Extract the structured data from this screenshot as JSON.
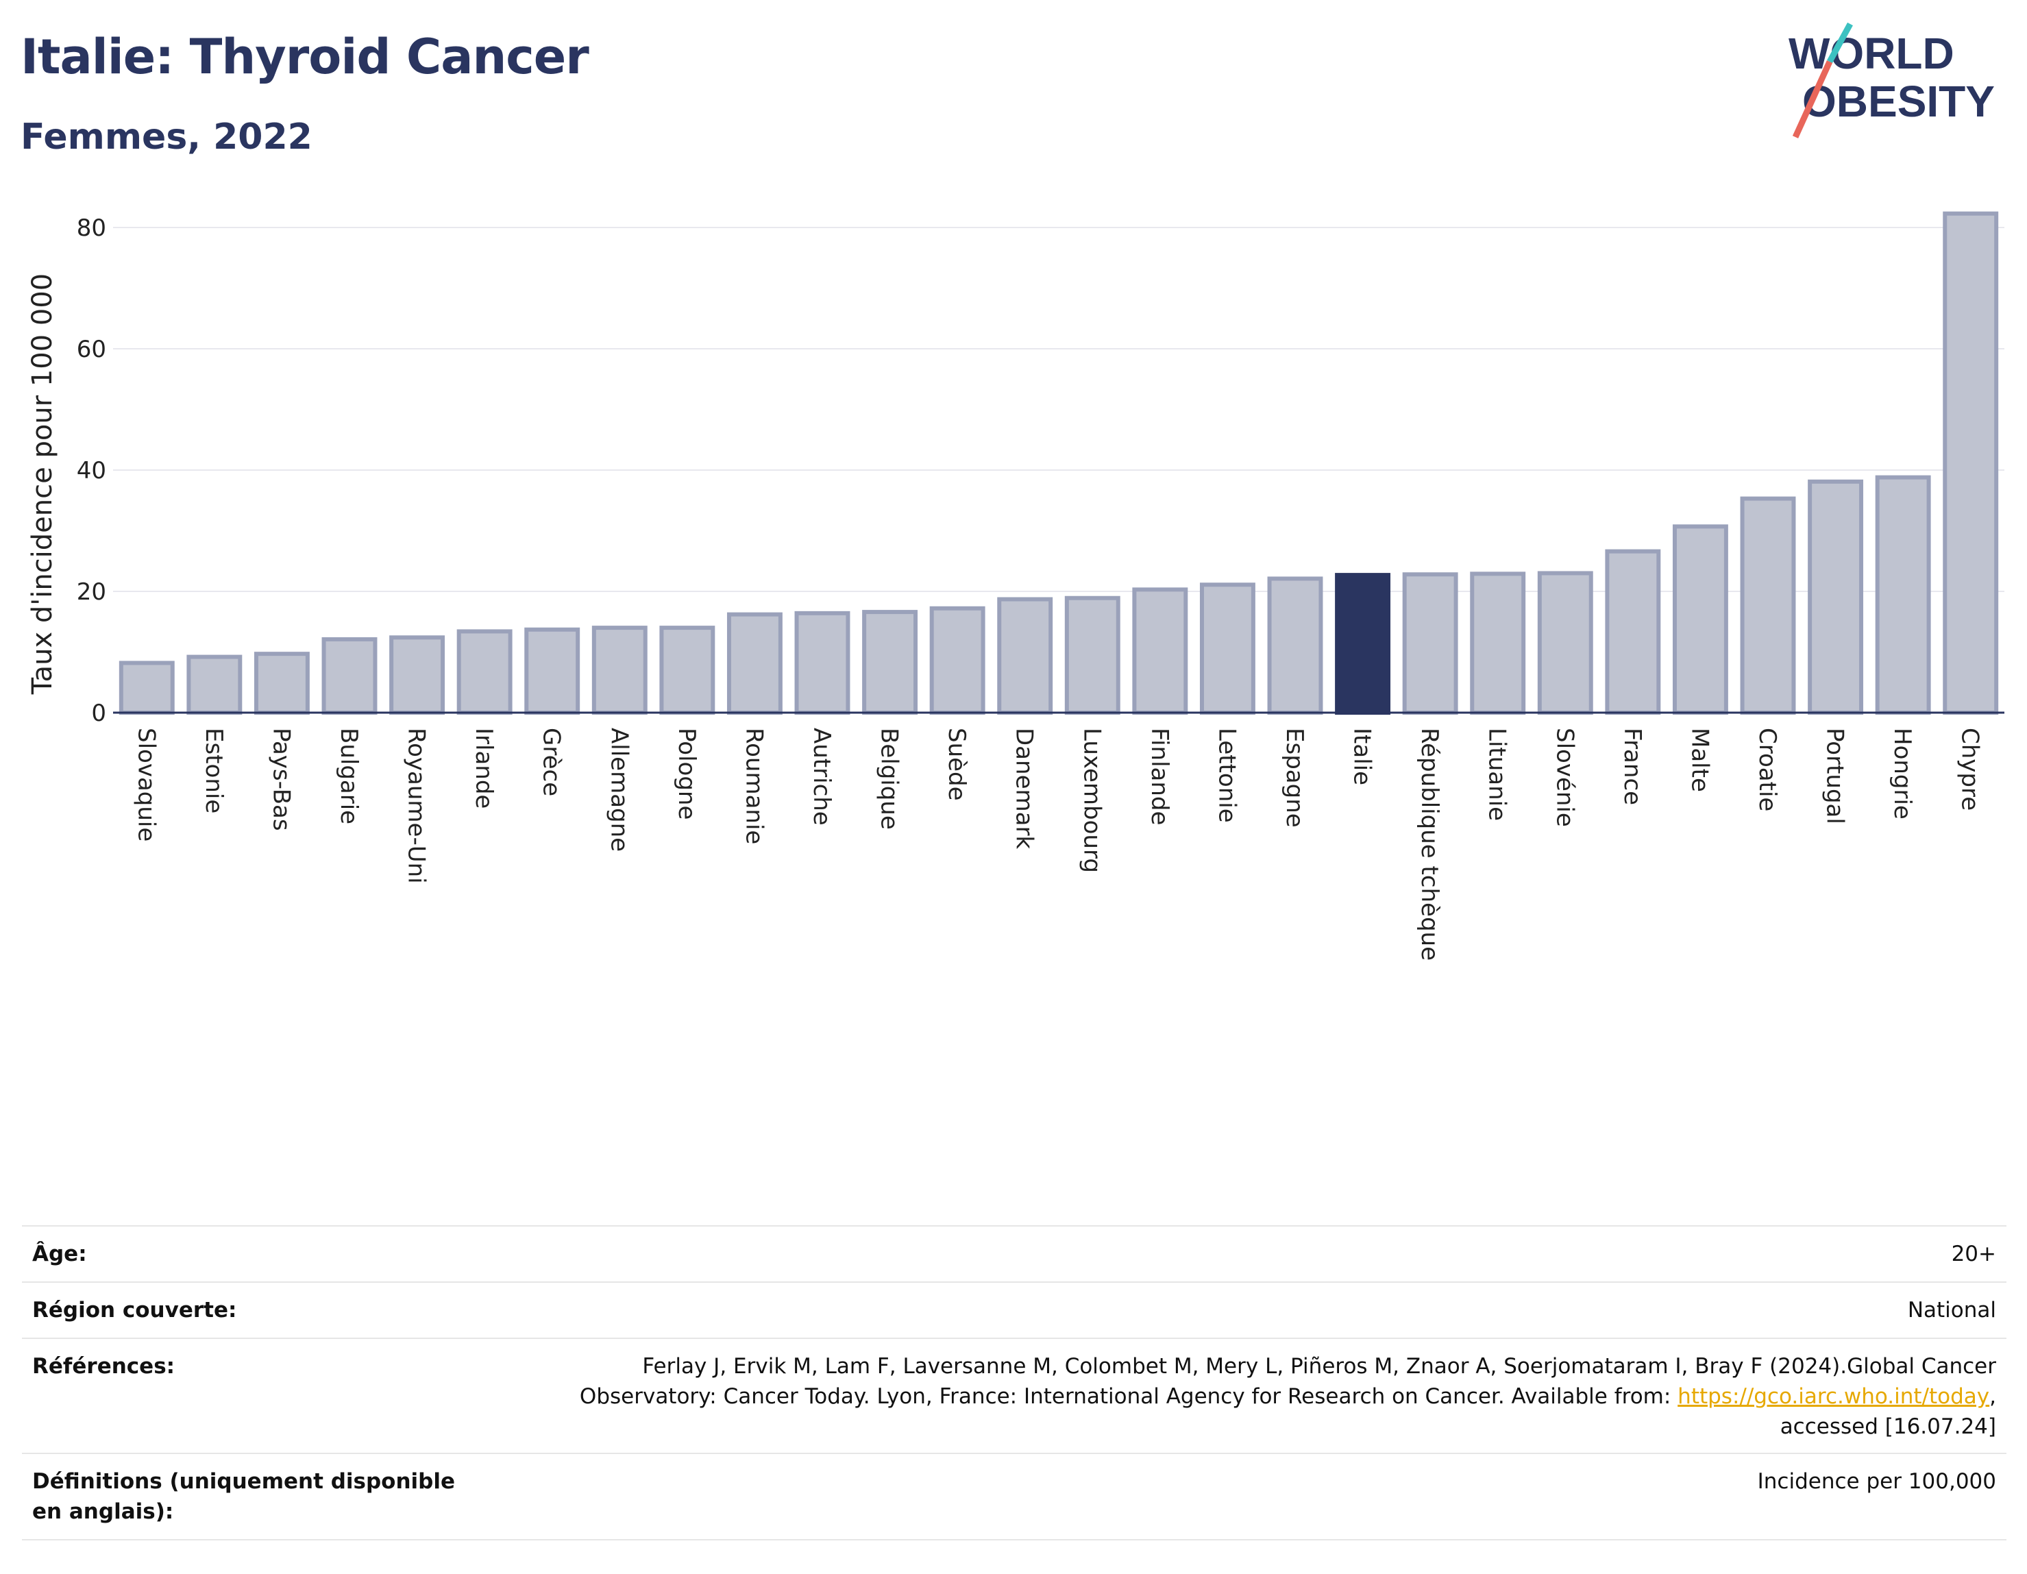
{
  "header": {
    "title": "Italie: Thyroid Cancer",
    "subtitle": "Femmes, 2022"
  },
  "logo": {
    "line1": "WORLD",
    "line2": "OBESITY",
    "slash_colors": [
      "#3cc1c1",
      "#e8665a"
    ]
  },
  "colors": {
    "bar": "#bfc3d0",
    "bar_border": "#9aa1ba",
    "highlight": "#2a3560",
    "text": "#2a3560"
  },
  "chart_data": {
    "type": "bar",
    "title": "Italie: Thyroid Cancer",
    "subtitle": "Femmes, 2022",
    "xlabel": "",
    "ylabel": "Taux d'incidence pour 100 000",
    "ylim": [
      0,
      85
    ],
    "yticks": [
      0,
      20,
      40,
      60,
      80
    ],
    "grid": true,
    "highlight_category": "Italie",
    "categories": [
      "Slovaquie",
      "Estonie",
      "Pays-Bas",
      "Bulgarie",
      "Royaume-Uni",
      "Irlande",
      "Grèce",
      "Allemagne",
      "Pologne",
      "Roumanie",
      "Autriche",
      "Belgique",
      "Suède",
      "Danemark",
      "Luxembourg",
      "Finlande",
      "Lettonie",
      "Espagne",
      "Italie",
      "République tchèque",
      "Lituanie",
      "Slovénie",
      "France",
      "Malte",
      "Croatie",
      "Portugal",
      "Hongrie",
      "Chypre"
    ],
    "values": [
      8.2,
      9.2,
      9.7,
      12.1,
      12.4,
      13.4,
      13.7,
      14.0,
      14.0,
      16.2,
      16.4,
      16.6,
      17.2,
      18.7,
      18.9,
      20.3,
      21.1,
      22.1,
      22.7,
      22.8,
      22.9,
      23.0,
      26.6,
      30.7,
      35.3,
      38.1,
      38.8,
      82.3
    ]
  },
  "meta": {
    "age_label": "Âge:",
    "age_value": "20+",
    "region_label": "Région couverte:",
    "region_value": "National",
    "references_label": "Références:",
    "references_line1": "Ferlay J, Ervik M, Lam F, Laversanne M, Colombet M, Mery L, Piñeros M, Znaor A, Soerjomataram I, Bray F (2024).Global Cancer",
    "references_line2": "Observatory: Cancer Today. Lyon, France: International Agency for Research on Cancer. Available from:",
    "references_link": "https://gco.iarc.who.int/today",
    "references_line3": "accessed [16.07.24]",
    "definitions_label": "Définitions (uniquement disponible en anglais):",
    "definitions_value": "Incidence per 100,000"
  }
}
